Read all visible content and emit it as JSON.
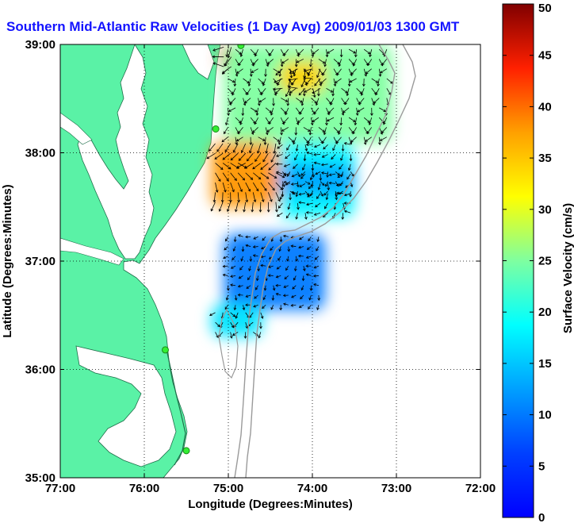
{
  "chart_data": {
    "type": "vector-field-map",
    "title": "Southern Mid-Atlantic Raw Velocities (1 Day Avg) 2009/01/03 1300 GMT",
    "xlabel": "Longitude (Degrees:Minutes)",
    "ylabel": "Latitude (Degrees:Minutes)",
    "xlim": [
      -77,
      -72
    ],
    "ylim": [
      35,
      39
    ],
    "x_ticks": [
      {
        "value": -77,
        "label": "77:00"
      },
      {
        "value": -76,
        "label": "76:00"
      },
      {
        "value": -75,
        "label": "75:00"
      },
      {
        "value": -74,
        "label": "74:00"
      },
      {
        "value": -73,
        "label": "73:00"
      },
      {
        "value": -72,
        "label": "72:00"
      }
    ],
    "y_ticks": [
      {
        "value": 35,
        "label": "35:00"
      },
      {
        "value": 36,
        "label": "36:00"
      },
      {
        "value": 37,
        "label": "37:00"
      },
      {
        "value": 38,
        "label": "38:00"
      },
      {
        "value": 39,
        "label": "39:00"
      }
    ],
    "grid": true,
    "colorbar": {
      "label": "Surface Velocity (cm/s)",
      "min": 0,
      "max": 50,
      "ticks": [
        0,
        5,
        10,
        15,
        20,
        25,
        30,
        35,
        40,
        45,
        50
      ],
      "colormap": "jet"
    },
    "land_color": "#5af2a6",
    "bathymetry_color": "#9a9a9a",
    "arrow_color": "#000000",
    "velocity_regions": [
      {
        "name": "delaware-mouth-jet",
        "lon_range": [
          -75.1,
          -74.95
        ],
        "lat_range": [
          38.75,
          39.0
        ],
        "speed": 45
      },
      {
        "name": "northern-lobe",
        "lon_range": [
          -75.05,
          -73.05
        ],
        "lat_range": [
          38.1,
          39.0
        ],
        "speed": 25
      },
      {
        "name": "northern-core",
        "lon_range": [
          -74.4,
          -73.85
        ],
        "lat_range": [
          38.55,
          38.85
        ],
        "speed": 34
      },
      {
        "name": "southern-lobe-west",
        "lon_range": [
          -75.2,
          -74.4
        ],
        "lat_range": [
          37.5,
          38.1
        ],
        "speed": 38
      },
      {
        "name": "southern-lobe-east",
        "lon_range": [
          -74.4,
          -73.5
        ],
        "lat_range": [
          37.4,
          38.1
        ],
        "speed": 18
      },
      {
        "name": "offshore-east",
        "lon_range": [
          -74.4,
          -73.5
        ],
        "lat_range": [
          37.6,
          37.9
        ],
        "speed": 13
      },
      {
        "name": "virginia-shelf",
        "lon_range": [
          -75.05,
          -73.85
        ],
        "lat_range": [
          36.55,
          37.25
        ],
        "speed": 10
      },
      {
        "name": "virginia-shelf-south",
        "lon_range": [
          -75.2,
          -74.6
        ],
        "lat_range": [
          36.3,
          36.6
        ],
        "speed": 17
      }
    ],
    "hf_radar_sites": [
      {
        "lon": -74.85,
        "lat": 38.99
      },
      {
        "lon": -75.15,
        "lat": 38.22
      },
      {
        "lon": -75.75,
        "lat": 36.18
      },
      {
        "lon": -75.5,
        "lat": 35.25
      }
    ]
  }
}
